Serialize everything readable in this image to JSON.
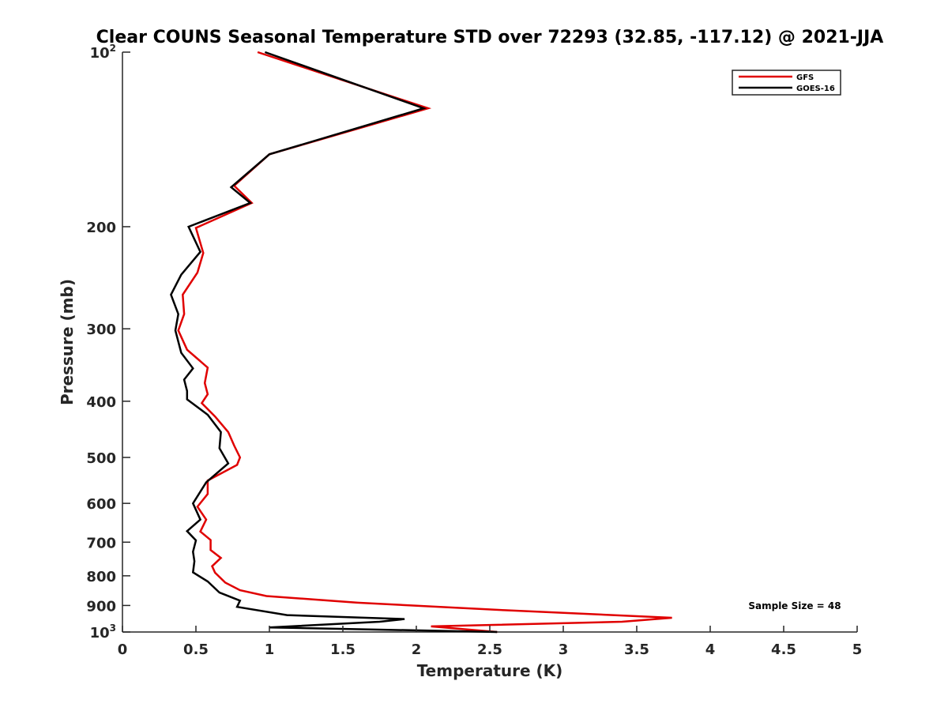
{
  "chart_data": {
    "type": "line",
    "title": "Clear COUNS Seasonal Temperature STD over 72293 (32.85, -117.12) @ 2021-JJA",
    "xlabel": "Temperature (K)",
    "ylabel": "Pressure (mb)",
    "xlim": [
      0,
      5
    ],
    "ylim": [
      100,
      1000
    ],
    "yscale": "log",
    "y_direction": "reversed",
    "x_ticks": [
      0,
      0.5,
      1,
      1.5,
      2,
      2.5,
      3,
      3.5,
      4,
      4.5,
      5
    ],
    "x_tick_labels": [
      "0",
      "0.5",
      "1",
      "1.5",
      "2",
      "2.5",
      "3",
      "3.5",
      "4",
      "4.5",
      "5"
    ],
    "y_ticks": [
      100,
      200,
      300,
      400,
      500,
      600,
      700,
      800,
      900,
      1000
    ],
    "y_tick_labels": [
      {
        "base": "10",
        "exp": "2"
      },
      {
        "text": "200"
      },
      {
        "text": "300"
      },
      {
        "text": "400"
      },
      {
        "text": "500"
      },
      {
        "text": "600"
      },
      {
        "text": "700"
      },
      {
        "text": "800"
      },
      {
        "text": "900"
      },
      {
        "base": "10",
        "exp": "3"
      }
    ],
    "legend_position": "top-right",
    "annotation": "Sample Size = 48",
    "series": [
      {
        "name": "GFS",
        "color": "#e00000",
        "points": [
          [
            0.92,
            100
          ],
          [
            2.08,
            125
          ],
          [
            1.0,
            150
          ],
          [
            0.76,
            170
          ],
          [
            0.88,
            182
          ],
          [
            0.5,
            201
          ],
          [
            0.55,
            222
          ],
          [
            0.51,
            240
          ],
          [
            0.41,
            262
          ],
          [
            0.42,
            283
          ],
          [
            0.38,
            302
          ],
          [
            0.44,
            326
          ],
          [
            0.58,
            350
          ],
          [
            0.56,
            372
          ],
          [
            0.58,
            389
          ],
          [
            0.54,
            403
          ],
          [
            0.63,
            425
          ],
          [
            0.72,
            452
          ],
          [
            0.76,
            477
          ],
          [
            0.8,
            500
          ],
          [
            0.78,
            515
          ],
          [
            0.58,
            548
          ],
          [
            0.58,
            578
          ],
          [
            0.51,
            608
          ],
          [
            0.57,
            640
          ],
          [
            0.53,
            671
          ],
          [
            0.6,
            694
          ],
          [
            0.6,
            722
          ],
          [
            0.67,
            745
          ],
          [
            0.61,
            770
          ],
          [
            0.63,
            790
          ],
          [
            0.7,
            822
          ],
          [
            0.8,
            847
          ],
          [
            0.98,
            867
          ],
          [
            1.6,
            890
          ],
          [
            2.6,
            917
          ],
          [
            3.74,
            945
          ],
          [
            3.4,
            960
          ],
          [
            2.1,
            978
          ],
          [
            2.55,
            1000
          ]
        ]
      },
      {
        "name": "GOES-16",
        "color": "#000000",
        "points": [
          [
            0.97,
            100
          ],
          [
            2.05,
            125
          ],
          [
            1.0,
            150
          ],
          [
            0.74,
            171
          ],
          [
            0.87,
            182
          ],
          [
            0.45,
            200
          ],
          [
            0.53,
            221
          ],
          [
            0.4,
            242
          ],
          [
            0.33,
            262
          ],
          [
            0.38,
            283
          ],
          [
            0.36,
            302
          ],
          [
            0.4,
            330
          ],
          [
            0.48,
            351
          ],
          [
            0.42,
            367
          ],
          [
            0.44,
            384
          ],
          [
            0.44,
            397
          ],
          [
            0.58,
            422
          ],
          [
            0.67,
            452
          ],
          [
            0.66,
            482
          ],
          [
            0.72,
            512
          ],
          [
            0.57,
            552
          ],
          [
            0.48,
            600
          ],
          [
            0.53,
            640
          ],
          [
            0.44,
            670
          ],
          [
            0.5,
            695
          ],
          [
            0.48,
            727
          ],
          [
            0.49,
            755
          ],
          [
            0.48,
            789
          ],
          [
            0.58,
            818
          ],
          [
            0.66,
            855
          ],
          [
            0.8,
            883
          ],
          [
            0.78,
            905
          ],
          [
            1.12,
            935
          ],
          [
            1.92,
            950
          ],
          [
            1.75,
            960
          ],
          [
            1.0,
            982
          ],
          [
            2.55,
            1000
          ]
        ]
      }
    ]
  }
}
